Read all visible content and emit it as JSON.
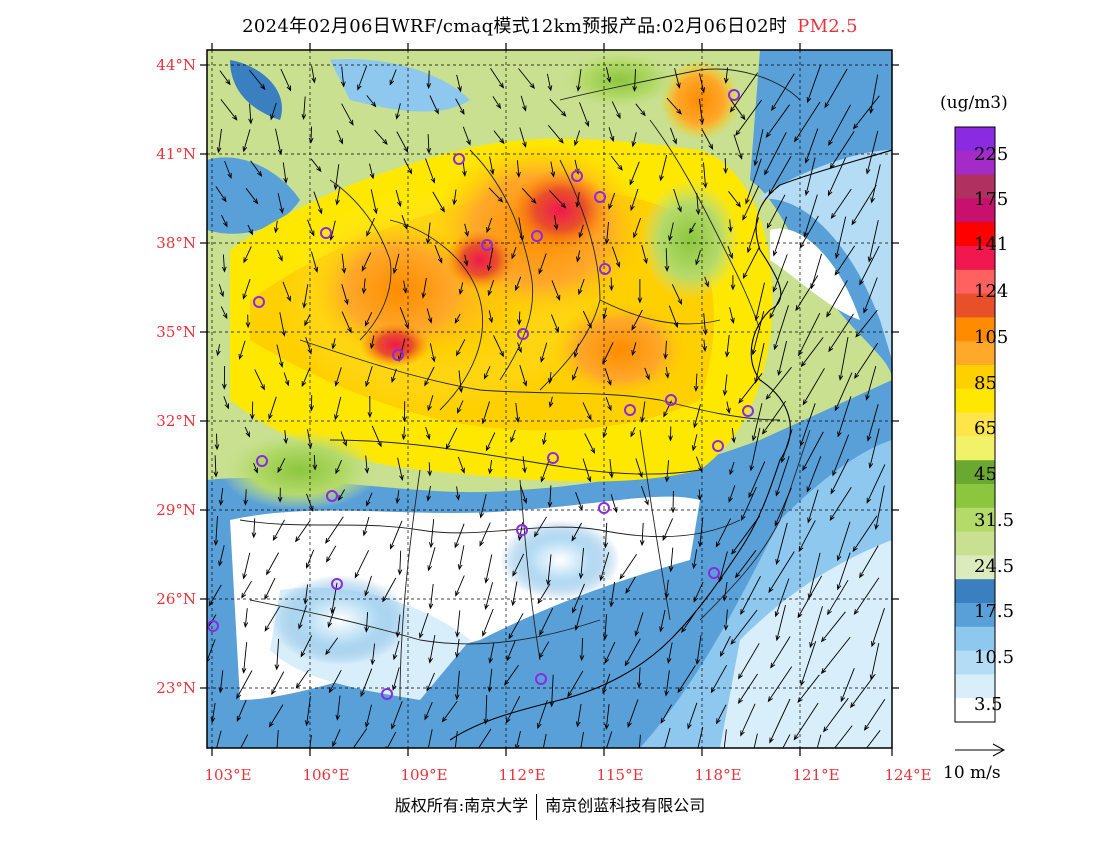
{
  "title": {
    "text": "2024年02月06日WRF/cmaq模式12km预报产品:02月06日02时",
    "pollutant": "PM2.5"
  },
  "axes": {
    "lat_ticks": [
      "44°N",
      "41°N",
      "38°N",
      "35°N",
      "32°N",
      "29°N",
      "26°N",
      "23°N"
    ],
    "lon_ticks": [
      "103°E",
      "106°E",
      "109°E",
      "112°E",
      "115°E",
      "118°E",
      "121°E",
      "124°E"
    ]
  },
  "colorbar": {
    "unit": "(ug/m3)",
    "labels": [
      "225",
      "175",
      "141",
      "124",
      "105",
      "85",
      "65",
      "45",
      "31.5",
      "24.5",
      "17.5",
      "10.5",
      "3.5"
    ],
    "colors": [
      "#8a2be2",
      "#a52bc8",
      "#b03060",
      "#c8106e",
      "#ff0000",
      "#f0184f",
      "#ff6060",
      "#e8502a",
      "#ff8c00",
      "#ffa82a",
      "#ffd000",
      "#ffe800",
      "#ffe44a",
      "#f2f26a",
      "#6aa832",
      "#8cc63f",
      "#b4da6a",
      "#c8e090",
      "#dcebbe",
      "#3a80c0",
      "#5aa0d8",
      "#8ec8ee",
      "#b4dcf4",
      "#d8eefa",
      "#ffffff"
    ],
    "wind_ref": "10 m/s"
  },
  "stations": 22,
  "footer": {
    "left": "版权所有:南京大学",
    "right": "南京创蓝科技有限公司"
  }
}
